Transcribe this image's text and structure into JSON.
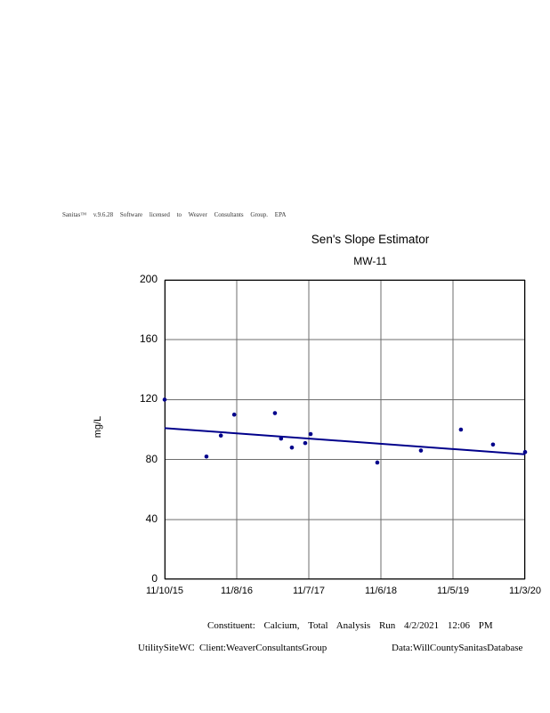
{
  "header": {
    "credit": "Sanitas™ v.9.6.28 Software licensed to Weaver Consultants Group. EPA"
  },
  "chart_data": {
    "type": "scatter",
    "title": "Sen's Slope Estimator",
    "subtitle": "MW-11",
    "ylabel": "mg/L",
    "ylim": [
      0,
      200
    ],
    "yticks": [
      0,
      40,
      80,
      120,
      160,
      200
    ],
    "xticks": [
      "11/10/15",
      "11/8/16",
      "11/7/17",
      "11/6/18",
      "11/5/19",
      "11/3/20"
    ],
    "grid": true,
    "legend": "none",
    "point_color": "#00008B",
    "line_color": "#00008B",
    "grid_color": "#6e6e6e",
    "points": [
      {
        "x": 0.0,
        "y": 120
      },
      {
        "x": 0.116,
        "y": 82
      },
      {
        "x": 0.156,
        "y": 96
      },
      {
        "x": 0.193,
        "y": 110
      },
      {
        "x": 0.306,
        "y": 111
      },
      {
        "x": 0.323,
        "y": 94
      },
      {
        "x": 0.353,
        "y": 88
      },
      {
        "x": 0.39,
        "y": 91
      },
      {
        "x": 0.405,
        "y": 97
      },
      {
        "x": 0.59,
        "y": 78
      },
      {
        "x": 0.711,
        "y": 86
      },
      {
        "x": 0.822,
        "y": 100
      },
      {
        "x": 0.911,
        "y": 90
      },
      {
        "x": 1.0,
        "y": 85
      }
    ],
    "trend": {
      "x": [
        0,
        1
      ],
      "y": [
        101,
        83.5
      ]
    }
  },
  "footer": {
    "analysis_line": "Constituent: Calcium, Total Analysis Run 4/2/2021 12:06 PM",
    "site": "UtilitySiteWC",
    "client": "Client:WeaverConsultantsGroup",
    "data_source": "Data:WillCountySanitasDatabase"
  }
}
